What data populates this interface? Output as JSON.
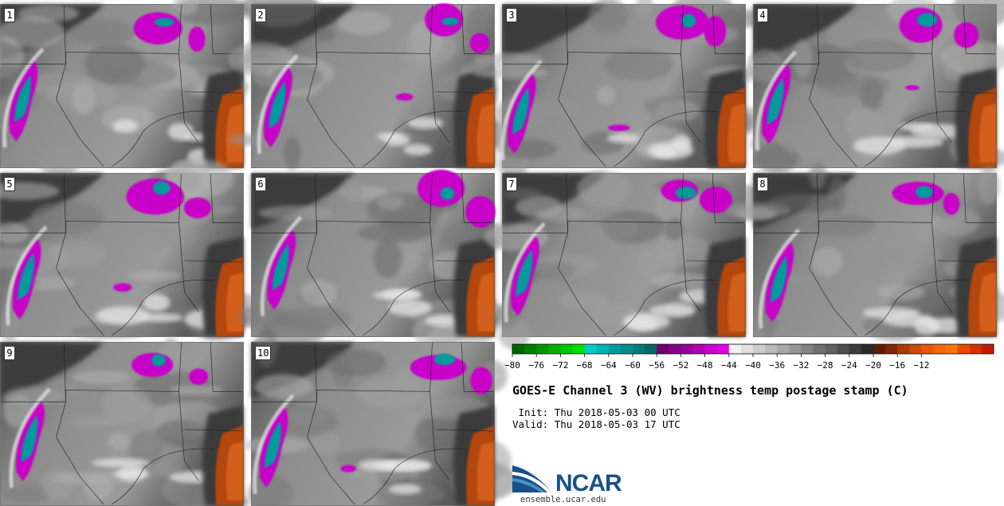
{
  "panels": [
    {
      "label": "1"
    },
    {
      "label": "2"
    },
    {
      "label": "3"
    },
    {
      "label": "4"
    },
    {
      "label": "5"
    },
    {
      "label": "6"
    },
    {
      "label": "7"
    },
    {
      "label": "8"
    },
    {
      "label": "9"
    },
    {
      "label": "10"
    }
  ],
  "colorbar": {
    "ticks": [
      "−80",
      "−76",
      "−72",
      "−68",
      "−64",
      "−60",
      "−56",
      "−52",
      "−48",
      "−44",
      "−40",
      "−36",
      "−32",
      "−28",
      "−24",
      "−20",
      "−16",
      "−12"
    ],
    "colors": [
      "#006400",
      "#007d00",
      "#009600",
      "#00b000",
      "#00c800",
      "#00e000",
      "#00cccc",
      "#00b4b4",
      "#009c9c",
      "#008c8c",
      "#007a7a",
      "#006868",
      "#6e006e",
      "#820082",
      "#960096",
      "#b000b0",
      "#c800c8",
      "#e000e0",
      "#f2f2f2",
      "#e0e0e0",
      "#cdcdcd",
      "#bababa",
      "#a8a8a8",
      "#969696",
      "#848484",
      "#727272",
      "#606060",
      "#4e4e4e",
      "#3c3c3c",
      "#2a2a2a",
      "#5a1e0a",
      "#82280a",
      "#aa3c0a",
      "#c84c0a",
      "#e05a0a",
      "#f06a0a",
      "#f5780a",
      "#e64b00",
      "#d23200",
      "#be1e00"
    ]
  },
  "title": "GOES-E Channel 3 (WV) brightness temp postage stamp (C)",
  "init": {
    "label": " Init:",
    "value": "Thu 2018-05-03 00 UTC"
  },
  "valid": {
    "label": "Valid:",
    "value": "Thu 2018-05-03 17 UTC"
  },
  "logo": {
    "text": "NCAR",
    "colors": {
      "blue": "#1a4f8a",
      "light": "#4a90c8"
    }
  },
  "site": "ensemble.ucar.edu"
}
